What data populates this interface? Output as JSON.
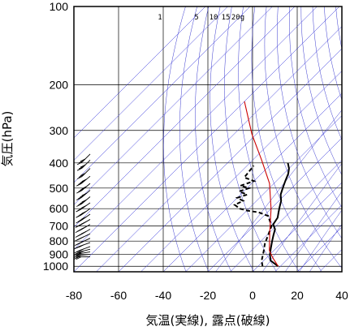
{
  "chart_data": {
    "type": "line",
    "title": "",
    "xlabel": "気温(実線), 露点(破線)",
    "ylabel": "気圧(hPa)",
    "xlim": [
      -80,
      40
    ],
    "ylim": [
      1050,
      100
    ],
    "y_scale": "log",
    "x_ticks": [
      "-80",
      "-60",
      "-40",
      "-20",
      "0",
      "20",
      "40"
    ],
    "y_ticks": [
      "100",
      "200",
      "300",
      "400",
      "500",
      "600",
      "700",
      "800",
      "900",
      "1000"
    ],
    "grid": true,
    "mixing_ratio_labels": [
      "1",
      "5",
      "10",
      "15",
      "20g"
    ],
    "series": [
      {
        "role": "temperature",
        "style": "solid",
        "color": "#000000",
        "points": [
          {
            "T": 9,
            "p": 1000
          },
          {
            "T": 6,
            "p": 975
          },
          {
            "T": 3,
            "p": 950
          },
          {
            "T": 0,
            "p": 900
          },
          {
            "T": -2,
            "p": 860
          },
          {
            "T": -5,
            "p": 800
          },
          {
            "T": -7,
            "p": 760
          },
          {
            "T": -9,
            "p": 720
          },
          {
            "T": -12,
            "p": 690
          },
          {
            "T": -13,
            "p": 650
          },
          {
            "T": -15,
            "p": 620
          },
          {
            "T": -17,
            "p": 590
          },
          {
            "T": -19,
            "p": 560
          },
          {
            "T": -22,
            "p": 530
          },
          {
            "T": -24,
            "p": 500
          },
          {
            "T": -26,
            "p": 470
          },
          {
            "T": -28,
            "p": 440
          },
          {
            "T": -30,
            "p": 420
          },
          {
            "T": -33,
            "p": 400
          }
        ]
      },
      {
        "role": "dewpoint",
        "style": "dashed",
        "color": "#000000",
        "points": [
          {
            "T": 2,
            "p": 1000
          },
          {
            "T": -1,
            "p": 950
          },
          {
            "T": -4,
            "p": 880
          },
          {
            "T": -7,
            "p": 820
          },
          {
            "T": -12,
            "p": 700
          },
          {
            "T": -18,
            "p": 640
          },
          {
            "T": -24,
            "p": 620
          },
          {
            "T": -30,
            "p": 610
          },
          {
            "T": -34,
            "p": 600
          },
          {
            "T": -38,
            "p": 580
          },
          {
            "T": -36,
            "p": 560
          },
          {
            "T": -40,
            "p": 545
          },
          {
            "T": -37,
            "p": 530
          },
          {
            "T": -42,
            "p": 515
          },
          {
            "T": -39,
            "p": 500
          },
          {
            "T": -44,
            "p": 490
          },
          {
            "T": -40,
            "p": 470
          },
          {
            "T": -46,
            "p": 455
          },
          {
            "T": -47,
            "p": 410
          }
        ]
      },
      {
        "role": "parcel",
        "style": "solid",
        "color": "#cc0000",
        "points": [
          {
            "T": 9,
            "p": 1000
          },
          {
            "T": 3,
            "p": 930
          },
          {
            "T": -2,
            "p": 870
          },
          {
            "T": -10,
            "p": 740
          },
          {
            "T": -20,
            "p": 600
          },
          {
            "T": -32,
            "p": 480
          },
          {
            "T": -46,
            "p": 390
          },
          {
            "T": -62,
            "p": 310
          },
          {
            "T": -80,
            "p": 232
          }
        ]
      }
    ],
    "wind_barbs": [
      {
        "p": 920,
        "dir": 270,
        "kt": 15
      },
      {
        "p": 900,
        "dir": 265,
        "kt": 20
      },
      {
        "p": 880,
        "dir": 260,
        "kt": 20
      },
      {
        "p": 860,
        "dir": 255,
        "kt": 25
      },
      {
        "p": 840,
        "dir": 250,
        "kt": 25
      },
      {
        "p": 810,
        "dir": 250,
        "kt": 30
      },
      {
        "p": 780,
        "dir": 245,
        "kt": 30
      },
      {
        "p": 750,
        "dir": 245,
        "kt": 30
      },
      {
        "p": 720,
        "dir": 240,
        "kt": 35
      },
      {
        "p": 690,
        "dir": 240,
        "kt": 35
      },
      {
        "p": 660,
        "dir": 240,
        "kt": 35
      },
      {
        "p": 630,
        "dir": 235,
        "kt": 35
      },
      {
        "p": 600,
        "dir": 235,
        "kt": 35
      },
      {
        "p": 570,
        "dir": 235,
        "kt": 35
      },
      {
        "p": 540,
        "dir": 230,
        "kt": 40
      },
      {
        "p": 510,
        "dir": 230,
        "kt": 40
      },
      {
        "p": 480,
        "dir": 230,
        "kt": 35
      },
      {
        "p": 450,
        "dir": 230,
        "kt": 35
      },
      {
        "p": 420,
        "dir": 225,
        "kt": 30
      },
      {
        "p": 390,
        "dir": 225,
        "kt": 30
      },
      {
        "p": 370,
        "dir": 225,
        "kt": 25
      }
    ]
  }
}
